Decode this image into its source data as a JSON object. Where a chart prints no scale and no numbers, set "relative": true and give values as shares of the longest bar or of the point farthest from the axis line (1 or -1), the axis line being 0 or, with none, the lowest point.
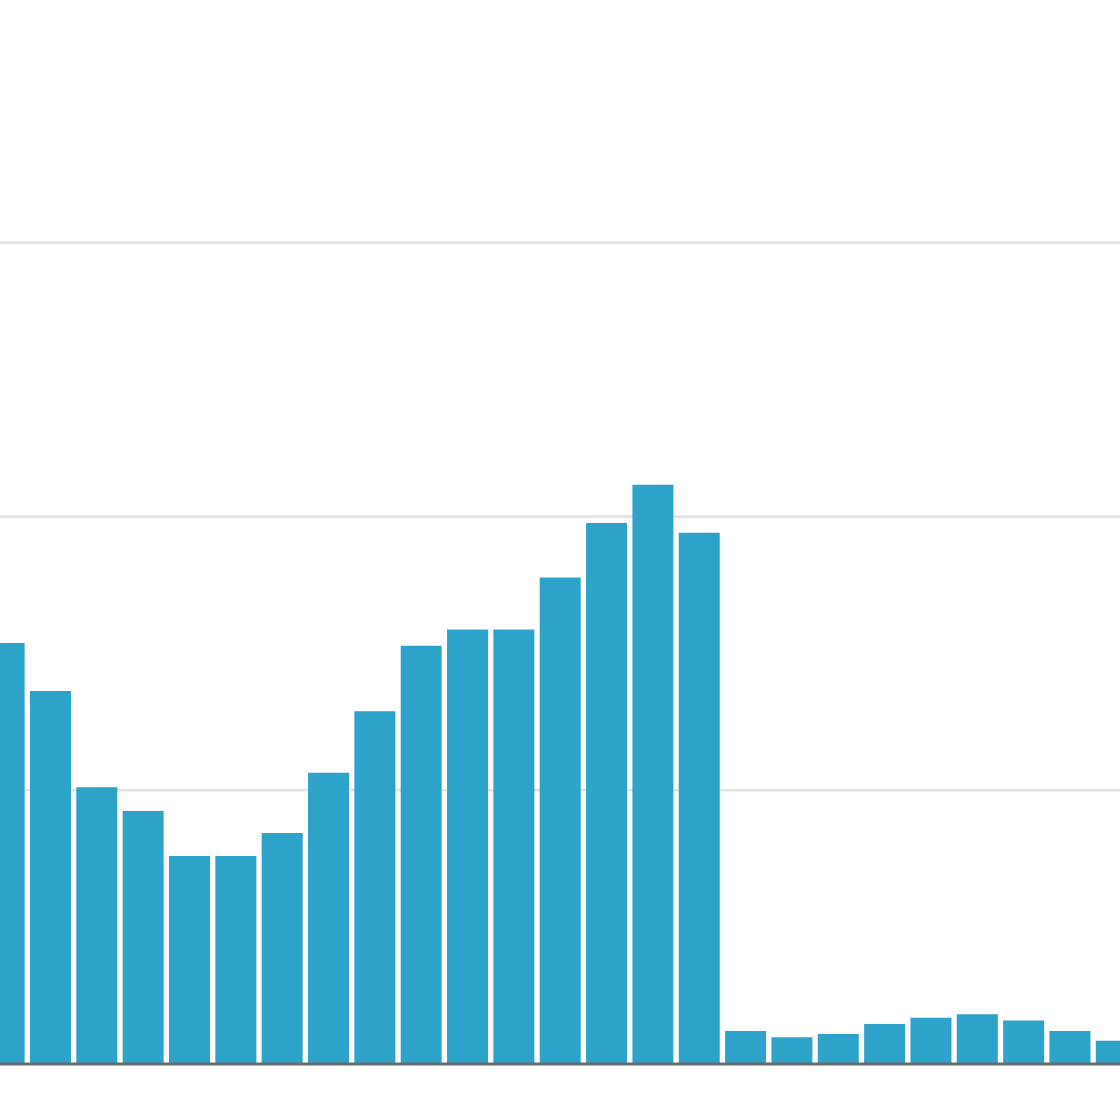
{
  "chart_data": {
    "type": "bar",
    "relative": true,
    "color": "#2ea3ca",
    "ref_lines": [
      {
        "axis": "y",
        "value": 0.473,
        "color": "#e3e3e3",
        "line_style": "solid"
      },
      {
        "axis": "y",
        "value": 0.945,
        "color": "#e3e3e3",
        "line_style": "solid"
      },
      {
        "axis": "y",
        "value": 1.418,
        "color": "#e3e3e3",
        "line_style": "solid"
      }
    ],
    "categories": [
      null,
      null,
      null,
      null,
      null,
      null,
      null,
      null,
      null,
      null,
      null,
      null,
      null,
      null,
      null,
      null,
      null,
      null,
      null,
      null,
      null,
      null,
      null,
      null,
      null
    ],
    "values": [
      0.727,
      0.644,
      0.478,
      0.437,
      0.359,
      0.359,
      0.399,
      0.503,
      0.609,
      0.722,
      0.75,
      0.75,
      0.84,
      0.934,
      1.0,
      0.917,
      0.057,
      0.046,
      0.052,
      0.069,
      0.08,
      0.086,
      0.075,
      0.057,
      0.04
    ]
  }
}
